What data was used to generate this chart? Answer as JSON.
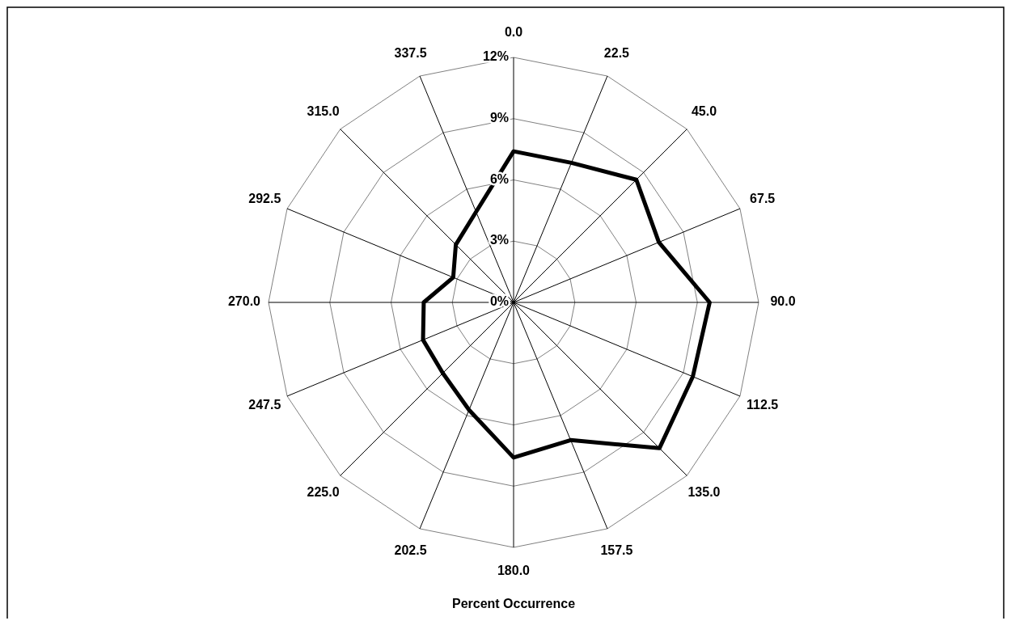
{
  "chart_data": {
    "type": "radar",
    "xlabel": "Percent Occurrence",
    "categories": [
      "0.0",
      "22.5",
      "45.0",
      "67.5",
      "90.0",
      "112.5",
      "135.0",
      "157.5",
      "180.0",
      "202.5",
      "225.0",
      "247.5",
      "270.0",
      "292.5",
      "315.0",
      "337.5"
    ],
    "series": [
      {
        "color": "#000000",
        "values": [
          7.4,
          7.4,
          8.5,
          7.7,
          9.6,
          9.5,
          10.1,
          7.3,
          7.6,
          5.7,
          4.9,
          4.8,
          4.4,
          3.2,
          4.0,
          4.8
        ]
      }
    ],
    "ylim": [
      0,
      12
    ],
    "yticks": [
      {
        "value": 0,
        "label": "0%"
      },
      {
        "value": 3,
        "label": "3%"
      },
      {
        "value": 6,
        "label": "6%"
      },
      {
        "value": 9,
        "label": "9%"
      },
      {
        "value": 12,
        "label": "12%"
      }
    ],
    "grid": true,
    "marker": "none",
    "line_style": "solid"
  }
}
